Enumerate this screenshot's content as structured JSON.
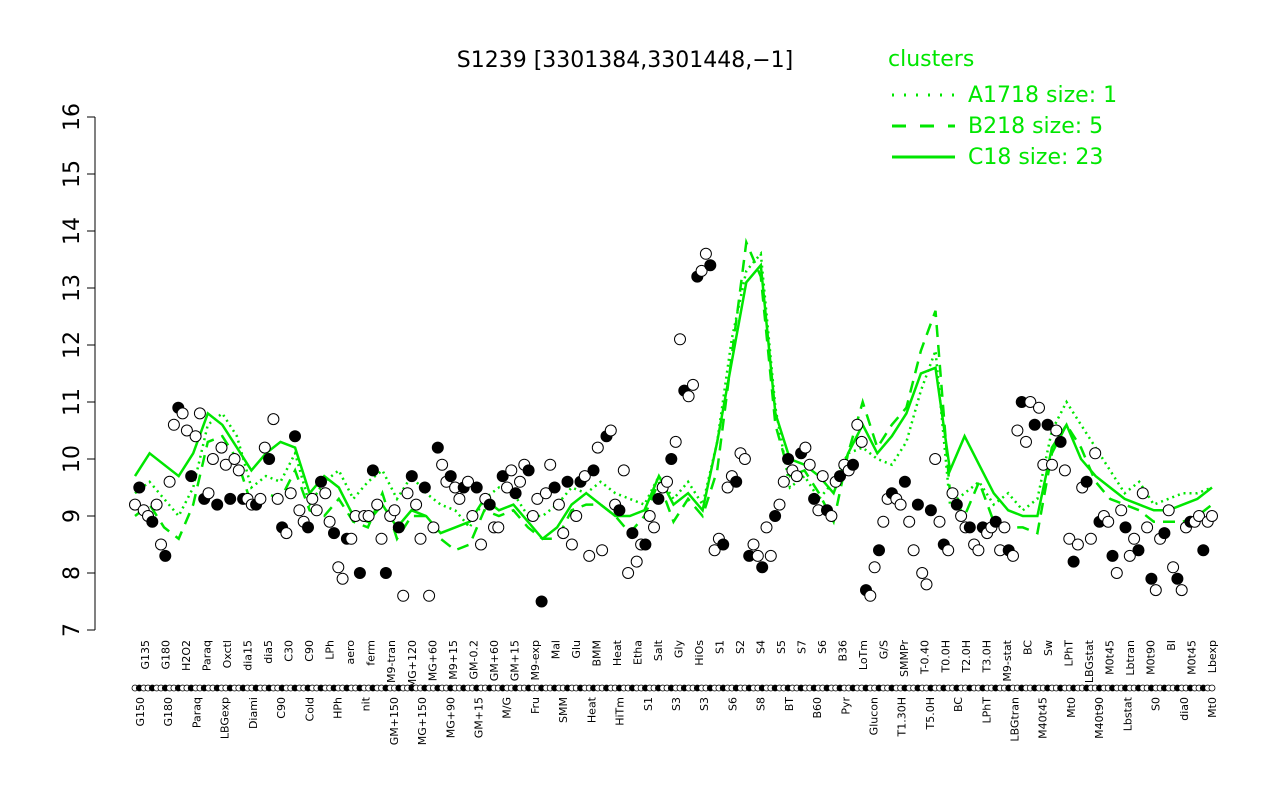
{
  "chart_data": {
    "type": "line",
    "title": "S1239 [3301384,3301448,−1]",
    "ylim": [
      7,
      16
    ],
    "y_ticks": [
      7,
      8,
      9,
      10,
      11,
      12,
      13,
      14,
      15,
      16
    ],
    "xlabel": "",
    "ylabel": "",
    "x_tick_labels_top": [
      "G135",
      "G180",
      "H2O2",
      "Paraq",
      "Oxctl",
      "dia15",
      "dia5",
      "C30",
      "C90",
      "LPh",
      "aero",
      "ferm",
      "M9-tran",
      "MG+120",
      "MG+60",
      "M9+15",
      "GM-0.2",
      "GM+60",
      "GM+15",
      "M9-exp",
      "Mal",
      "Glu",
      "BMM",
      "Heat",
      "Etha",
      "Salt",
      "Gly",
      "HiOs",
      "S1",
      "S2",
      "S4",
      "S5",
      "S7",
      "S6",
      "B36",
      "LoTm",
      "G/S",
      "SMMPr",
      "T-0.40",
      "T0.0H",
      "T2.0H",
      "T3.0H",
      "M9-stat",
      "BC",
      "Sw",
      "LPhT",
      "LBGstat",
      "M0t45",
      "Lbtran",
      "M0t90",
      "BI",
      "M0t45",
      "Lbexp"
    ],
    "x_tick_labels_bottom": [
      "G150",
      "G180",
      "Paraq",
      "LBGexp",
      "Diami",
      "C90",
      "Cold",
      "HPh",
      "nit",
      "GM+150",
      "MG+150",
      "MG+90",
      "GM+15",
      "M/G",
      "Fru",
      "SMM",
      "Heat",
      "HiTm",
      "S1",
      "S3",
      "S3",
      "S6",
      "S8",
      "BT",
      "B60",
      "Pyr",
      "Glucon",
      "T1.30H",
      "T5.0H",
      "BC",
      "LPhT",
      "LBGtran",
      "M40t45",
      "Mt0",
      "M40t90",
      "Lbstat",
      "S0",
      "dia0",
      "Mt0"
    ],
    "legend": {
      "title": "clusters",
      "position": "top-right",
      "entries": [
        {
          "label": "A1718 size: 1",
          "style": "dotted"
        },
        {
          "label": "B218 size: 5",
          "style": "dashed"
        },
        {
          "label": "C18 size: 23",
          "style": "solid"
        }
      ]
    },
    "series_color": "#00e600",
    "point_values": [
      9.2,
      9.5,
      9.1,
      9.0,
      8.9,
      9.2,
      8.5,
      8.3,
      9.6,
      10.6,
      10.9,
      10.8,
      10.5,
      9.7,
      10.4,
      10.8,
      9.3,
      9.4,
      10.0,
      9.2,
      10.2,
      9.9,
      9.3,
      10.0,
      9.8,
      9.3,
      9.3,
      9.2,
      9.2,
      9.3,
      10.2,
      10.0,
      10.7,
      9.3,
      8.8,
      8.7,
      9.4,
      10.4,
      9.1,
      8.9,
      8.8,
      9.3,
      9.1,
      9.6,
      9.4,
      8.9,
      8.7,
      8.1,
      7.9,
      8.6,
      8.6,
      9.0,
      8.0,
      9.0,
      9.0,
      9.8,
      9.2,
      8.6,
      8.0,
      9.0,
      9.1,
      8.8,
      7.6,
      9.4,
      9.7,
      9.2,
      8.6,
      9.5,
      7.6,
      8.8,
      10.2,
      9.9,
      9.6,
      9.7,
      9.5,
      9.3,
      9.5,
      9.6,
      9.0,
      9.5,
      8.5,
      9.3,
      9.2,
      8.8,
      8.8,
      9.7,
      9.5,
      9.8,
      9.4,
      9.6,
      9.9,
      9.8,
      9.0,
      9.3,
      7.5,
      9.4,
      9.9,
      9.5,
      9.2,
      8.7,
      9.6,
      8.5,
      9.0,
      9.6,
      9.7,
      8.3,
      9.8,
      10.2,
      8.4,
      10.4,
      10.5,
      9.2,
      9.1,
      9.8,
      8.0,
      8.7,
      8.2,
      8.5,
      8.5,
      9.0,
      8.8,
      9.3,
      9.5,
      9.6,
      10.0,
      10.3,
      12.1,
      11.2,
      11.1,
      11.3,
      13.2,
      13.3,
      13.6,
      13.4,
      8.4,
      8.6,
      8.5,
      9.5,
      9.7,
      9.6,
      10.1,
      10.0,
      8.3,
      8.5,
      8.3,
      8.1,
      8.8,
      8.3,
      9.0,
      9.2,
      9.6,
      10.0,
      9.8,
      9.7,
      10.1,
      10.2,
      9.9,
      9.3,
      9.1,
      9.7,
      9.1,
      9.0,
      9.6,
      9.7,
      9.9,
      9.8,
      9.9,
      10.6,
      10.3,
      7.7,
      7.6,
      8.1,
      8.4,
      8.9,
      9.3,
      9.4,
      9.3,
      9.2,
      9.6,
      8.9,
      8.4,
      9.2,
      8.0,
      7.8,
      9.1,
      10.0,
      8.9,
      8.5,
      8.4,
      9.4,
      9.2,
      9.0,
      8.8,
      8.8,
      8.5,
      8.4,
      8.8,
      8.7,
      8.8,
      8.9,
      8.4,
      8.8,
      8.4,
      8.3,
      10.5,
      11.0,
      10.3,
      11.0,
      10.6,
      10.9,
      9.9,
      10.6,
      9.9,
      10.5,
      10.3,
      9.8,
      8.6,
      8.2,
      8.5,
      9.5,
      9.6,
      8.6,
      10.1,
      8.9,
      9.0,
      8.9,
      8.3,
      8.0,
      9.1,
      8.8,
      8.3,
      8.6,
      8.4,
      9.4,
      8.8,
      7.9,
      7.7,
      8.6,
      8.7,
      9.1,
      8.1,
      7.9,
      7.7,
      8.8,
      8.9,
      8.9,
      9.0,
      8.4,
      8.9,
      9.0
    ],
    "cluster_lines": [
      {
        "cluster": "A1718",
        "style": "dotted",
        "values": [
          9.4,
          9.6,
          9.3,
          9.0,
          9.5,
          10.6,
          10.8,
          10.4,
          9.5,
          9.7,
          9.6,
          10.1,
          9.2,
          9.6,
          9.8,
          9.3,
          9.6,
          9.8,
          9.3,
          9.7,
          9.4,
          9.2,
          9.1,
          8.8,
          9.3,
          9.5,
          9.4,
          9.0,
          9.0,
          9.2,
          9.5,
          9.4,
          9.6,
          9.4,
          9.3,
          9.2,
          9.7,
          9.3,
          9.6,
          9.2,
          10.3,
          12.1,
          13.3,
          13.6,
          10.9,
          9.5,
          9.7,
          9.3,
          9.6,
          10.1,
          10.2,
          10.0,
          9.9,
          10.3,
          11.2,
          11.9,
          9.2,
          9.4,
          9.6,
          9.2,
          9.4,
          9.1,
          9.3,
          10.5,
          11.0,
          10.6,
          10.2,
          9.8,
          9.4,
          9.6,
          9.2,
          9.3,
          9.4,
          9.4,
          9.5
        ]
      },
      {
        "cluster": "B218",
        "style": "dashed",
        "values": [
          9.0,
          9.2,
          8.8,
          8.6,
          9.2,
          10.3,
          10.4,
          10.0,
          9.2,
          9.4,
          9.3,
          9.8,
          9.1,
          9.0,
          9.3,
          8.9,
          8.8,
          9.4,
          8.6,
          9.0,
          9.0,
          8.6,
          8.4,
          8.5,
          9.1,
          9.0,
          9.1,
          8.8,
          8.6,
          8.6,
          9.1,
          9.2,
          9.2,
          9.0,
          8.7,
          9.0,
          9.6,
          8.9,
          9.3,
          9.0,
          9.8,
          11.8,
          13.8,
          13.2,
          10.6,
          9.7,
          9.8,
          9.4,
          8.9,
          10.1,
          11.0,
          10.2,
          10.6,
          10.9,
          11.9,
          12.6,
          9.4,
          9.0,
          9.6,
          8.9,
          8.8,
          8.8,
          8.7,
          10.1,
          10.6,
          10.2,
          9.6,
          9.3,
          9.2,
          9.1,
          8.9,
          8.9,
          8.9,
          9.0,
          9.2
        ]
      },
      {
        "cluster": "C18",
        "style": "solid",
        "values": [
          9.7,
          10.1,
          9.9,
          9.7,
          10.1,
          10.8,
          10.6,
          10.2,
          9.8,
          10.1,
          10.3,
          10.2,
          9.4,
          9.7,
          9.5,
          9.0,
          8.9,
          9.2,
          8.8,
          9.1,
          9.0,
          8.7,
          8.8,
          8.9,
          9.3,
          9.1,
          9.2,
          8.9,
          8.6,
          8.8,
          9.2,
          9.4,
          9.2,
          9.0,
          9.0,
          9.1,
          9.7,
          9.2,
          9.4,
          9.1,
          10.3,
          11.7,
          13.1,
          13.4,
          10.8,
          10.0,
          9.9,
          9.7,
          9.4,
          10.1,
          10.6,
          10.1,
          10.4,
          10.8,
          11.5,
          11.6,
          9.8,
          10.4,
          9.9,
          9.4,
          9.1,
          9.0,
          9.0,
          10.2,
          10.6,
          10.0,
          9.7,
          9.5,
          9.3,
          9.2,
          9.1,
          9.1,
          9.2,
          9.3,
          9.5
        ]
      }
    ]
  }
}
